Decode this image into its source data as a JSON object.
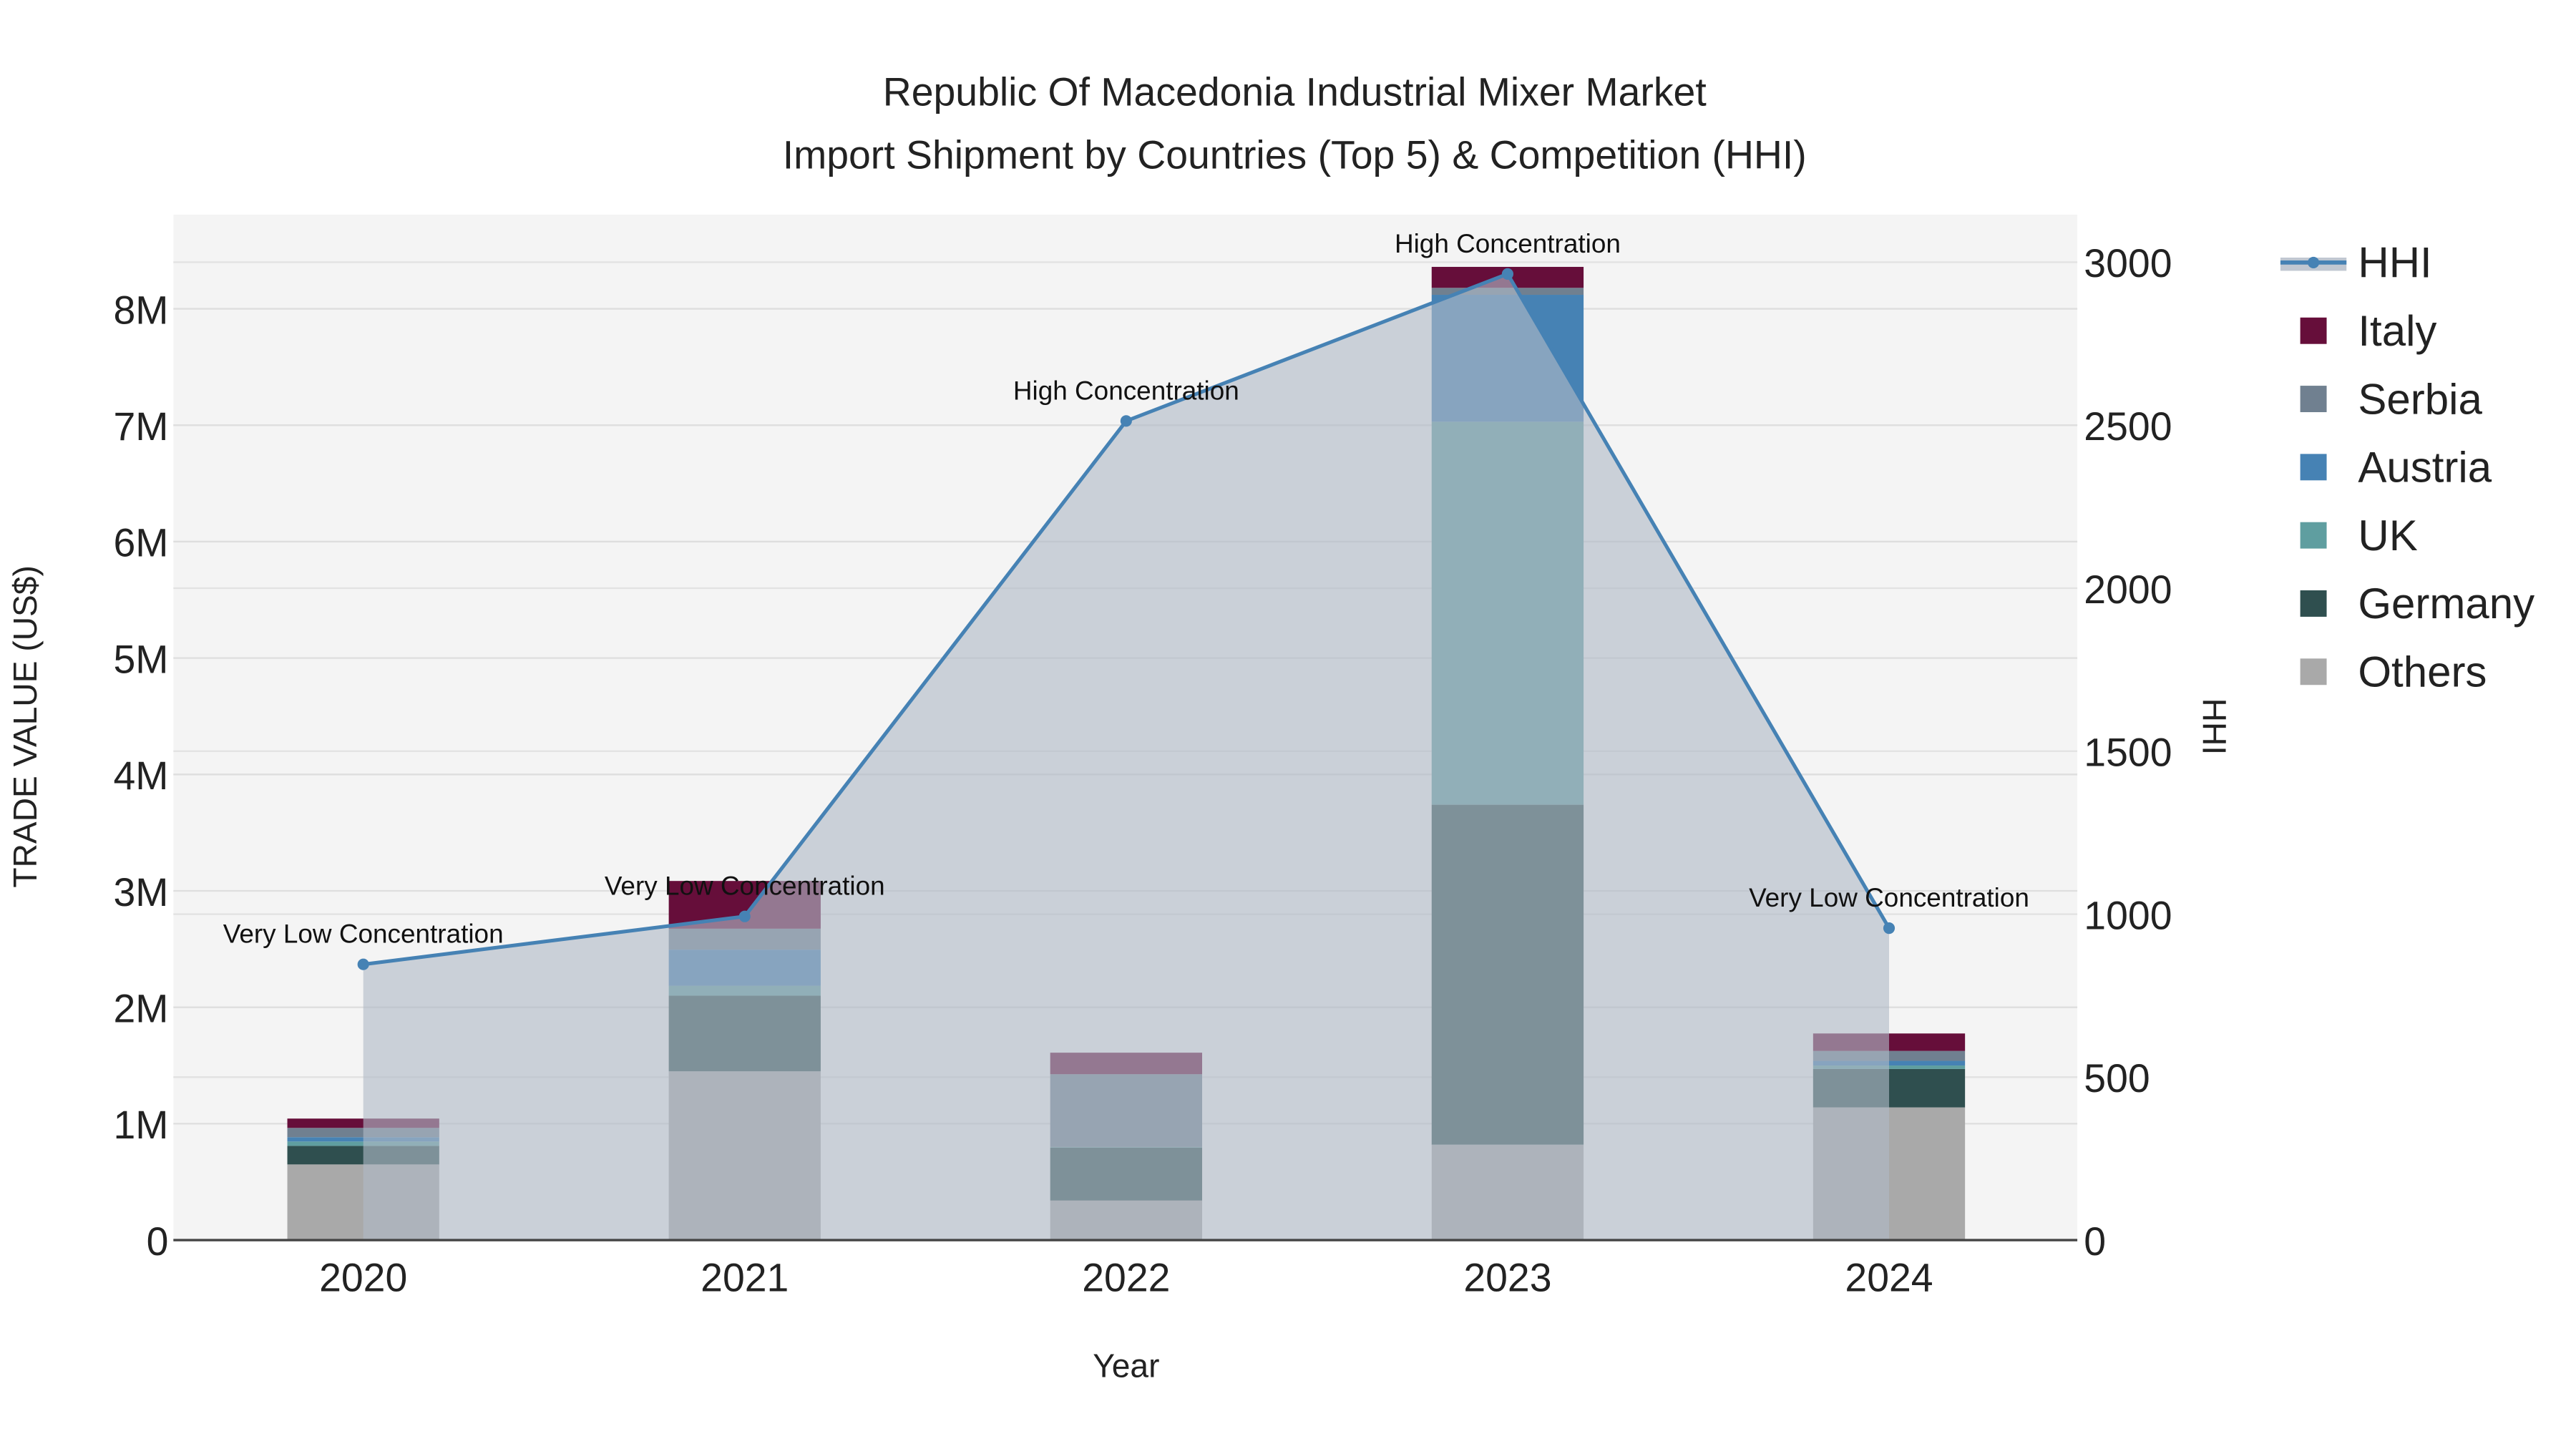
{
  "chart_data": {
    "type": "bar",
    "title_line1": "Republic Of Macedonia Industrial Mixer Market",
    "title_line2": "Import Shipment by Countries (Top 5) & Competition (HHI)",
    "xlabel": "Year",
    "ylabel": "TRADE VALUE (US$)",
    "y2label": "HHI",
    "categories": [
      "2020",
      "2021",
      "2022",
      "2023",
      "2024"
    ],
    "ylim": [
      0,
      8800000
    ],
    "y2lim": [
      0,
      3140
    ],
    "yticks": [
      0,
      1000000,
      2000000,
      3000000,
      4000000,
      5000000,
      6000000,
      7000000,
      8000000
    ],
    "ytick_labels": [
      "0",
      "1M",
      "2M",
      "3M",
      "4M",
      "5M",
      "6M",
      "7M",
      "8M"
    ],
    "y2ticks": [
      0,
      500,
      1000,
      1500,
      2000,
      2500,
      3000
    ],
    "y2tick_labels": [
      "0",
      "500",
      "1000",
      "1500",
      "2000",
      "2500",
      "3000"
    ],
    "series": [
      {
        "name": "Others",
        "color": "#a9a9a9",
        "values": [
          650000,
          1450000,
          340000,
          820000,
          1140000
        ]
      },
      {
        "name": "Germany",
        "color": "#2f4f4f",
        "values": [
          160000,
          650000,
          455000,
          2920000,
          330000
        ]
      },
      {
        "name": "UK",
        "color": "#5f9ea0",
        "values": [
          37000,
          85000,
          5000,
          3290000,
          30000
        ]
      },
      {
        "name": "Austria",
        "color": "#4682b4",
        "values": [
          37000,
          310000,
          0,
          1090000,
          40000
        ]
      },
      {
        "name": "Serbia",
        "color": "#708090",
        "values": [
          80000,
          180000,
          625000,
          60000,
          85000
        ]
      },
      {
        "name": "Italy",
        "color": "#660e3a",
        "values": [
          80000,
          410000,
          185000,
          180000,
          150000
        ]
      }
    ],
    "hhi": {
      "name": "HHI",
      "color": "#4682b4",
      "values": [
        846,
        993,
        2513,
        2964,
        957
      ],
      "annotations": [
        "Very Low Concentration",
        "Very Low Concentration",
        "High Concentration",
        "High Concentration",
        "Very Low Concentration"
      ]
    },
    "legend": [
      "HHI",
      "Italy",
      "Serbia",
      "Austria",
      "UK",
      "Germany",
      "Others"
    ],
    "legend_placement": "right",
    "grid": true
  }
}
